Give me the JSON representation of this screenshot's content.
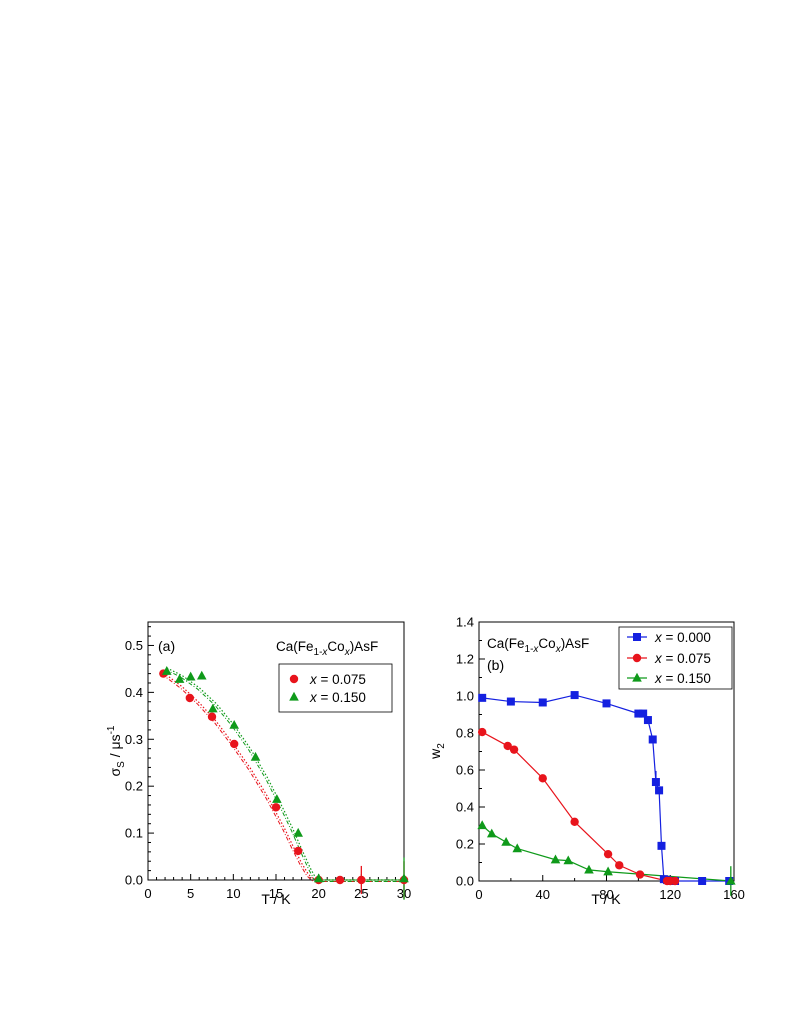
{
  "chart_data": [
    {
      "type": "scatter",
      "panel_label": "(a)",
      "compound_label": {
        "pre": "Ca(Fe",
        "sub1": "1-",
        "sub1_italic": "x",
        "mid": "Co",
        "sub2_italic": "x",
        "post": ")AsF"
      },
      "xlabel": "T / K",
      "ylabel": {
        "sym": "σ",
        "sub": "S",
        "unit": " / μs",
        "sup": "-1"
      },
      "xlim": [
        0,
        30
      ],
      "ylim": [
        0,
        0.55
      ],
      "xticks": [
        "0",
        "5",
        "10",
        "15",
        "20",
        "25",
        "30"
      ],
      "yticks": [
        "0.0",
        "0.1",
        "0.2",
        "0.3",
        "0.4",
        "0.5"
      ],
      "legend_position": "top-right",
      "series": [
        {
          "name_prefix": "x",
          "name": "= 0.075",
          "color": "#e8141c",
          "marker": "circle",
          "x": [
            1.8,
            4.9,
            7.5,
            10.1,
            15.0,
            17.6,
            20.0,
            22.5,
            25.0,
            30.0
          ],
          "y": [
            0.44,
            0.388,
            0.348,
            0.29,
            0.155,
            0.062,
            0.0,
            0.0,
            0.0,
            0.0
          ],
          "fit": {
            "x": [
              1.8,
              4,
              6,
              8,
              10,
              12,
              14,
              16,
              17,
              18,
              18.8,
              19.4,
              20,
              22,
              25,
              30
            ],
            "y": [
              0.442,
              0.412,
              0.378,
              0.338,
              0.29,
              0.238,
              0.178,
              0.11,
              0.072,
              0.036,
              0.012,
              0.002,
              0.0,
              0.0,
              0.0,
              0.0
            ]
          }
        },
        {
          "name_prefix": "x",
          "name": "= 0.150",
          "color": "#0f9a1a",
          "marker": "triangle",
          "x": [
            2.2,
            3.7,
            5.0,
            6.3,
            7.6,
            10.1,
            12.6,
            15.1,
            17.6,
            20.0,
            30.0
          ],
          "y": [
            0.445,
            0.428,
            0.433,
            0.435,
            0.365,
            0.33,
            0.262,
            0.172,
            0.1,
            0.003,
            0.003
          ],
          "fit": {
            "x": [
              2.2,
              4,
              6,
              8,
              10,
              12,
              14,
              16,
              17,
              18,
              19,
              19.6,
              20,
              25,
              30
            ],
            "y": [
              0.452,
              0.436,
              0.41,
              0.376,
              0.332,
              0.28,
              0.218,
              0.146,
              0.108,
              0.066,
              0.026,
              0.006,
              0.0,
              0.0,
              0.0
            ]
          }
        }
      ],
      "error_bars": [
        {
          "series": 0,
          "x": 22.5,
          "y": 0.0,
          "err": 0.008
        },
        {
          "series": 0,
          "x": 25.0,
          "y": 0.0,
          "err": 0.03
        },
        {
          "series": 0,
          "x": 30.0,
          "y": 0.0,
          "err": 0.04
        },
        {
          "series": 1,
          "x": 30.0,
          "y": 0.003,
          "err": 0.045
        }
      ]
    },
    {
      "type": "line",
      "panel_label": "(b)",
      "compound_label": {
        "pre": "Ca(Fe",
        "sub1": "1-",
        "sub1_italic": "x",
        "mid": "Co",
        "sub2_italic": "x",
        "post": ")AsF"
      },
      "xlabel": "T / K",
      "ylabel": {
        "sym": "w",
        "sub": "2"
      },
      "xlim": [
        0,
        160
      ],
      "ylim": [
        0,
        1.4
      ],
      "xticks": [
        "0",
        "40",
        "80",
        "120",
        "160"
      ],
      "yticks": [
        "0.0",
        "0.2",
        "0.4",
        "0.6",
        "0.8",
        "1.0",
        "1.2",
        "1.4"
      ],
      "legend_position": "top-right",
      "series": [
        {
          "name_prefix": "x",
          "name": "= 0.000",
          "color": "#1420e0",
          "marker": "square",
          "x": [
            2,
            20,
            40,
            60,
            80,
            100,
            103,
            106,
            109,
            111,
            113,
            114.5,
            116,
            118,
            120,
            123,
            140,
            157
          ],
          "y": [
            0.99,
            0.97,
            0.965,
            1.005,
            0.96,
            0.905,
            0.905,
            0.87,
            0.765,
            0.535,
            0.49,
            0.19,
            0.01,
            0.005,
            0.0,
            0.0,
            0.0,
            0.0
          ]
        },
        {
          "name_prefix": "x",
          "name": "= 0.075",
          "color": "#e8141c",
          "marker": "circle",
          "x": [
            2,
            18,
            22,
            40,
            60,
            81,
            88,
            101,
            118,
            120,
            123
          ],
          "y": [
            0.805,
            0.73,
            0.71,
            0.555,
            0.32,
            0.145,
            0.085,
            0.035,
            0.0,
            0.0,
            0.0
          ]
        },
        {
          "name_prefix": "x",
          "name": "= 0.150",
          "color": "#0f9a1a",
          "marker": "triangle",
          "x": [
            2,
            8,
            17,
            24,
            48,
            56,
            69,
            81,
            158
          ],
          "y": [
            0.3,
            0.255,
            0.21,
            0.175,
            0.115,
            0.11,
            0.06,
            0.05,
            0.0
          ]
        }
      ],
      "error_bars": [
        {
          "series": 0,
          "x": 111,
          "y": 0.535,
          "err": 0.06
        },
        {
          "series": 1,
          "x": 118,
          "y": 0.0,
          "err": 0.02
        },
        {
          "series": 2,
          "x": 158,
          "y": 0.0,
          "err": 0.08
        }
      ]
    }
  ]
}
